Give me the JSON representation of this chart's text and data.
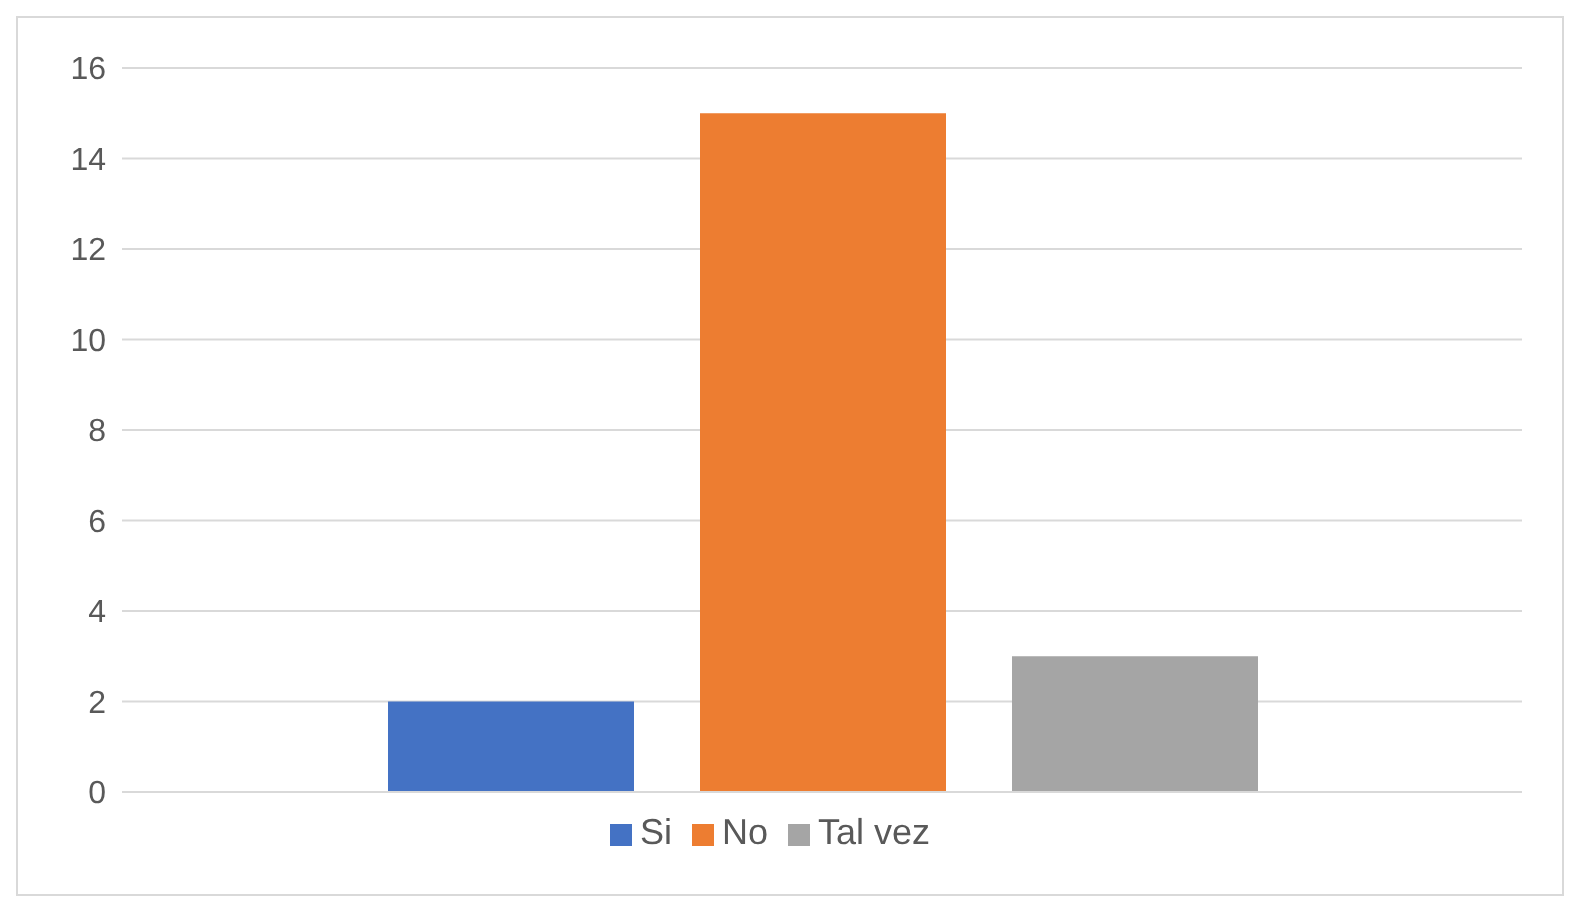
{
  "chart_data": {
    "type": "bar",
    "categories": [
      null
    ],
    "series": [
      {
        "name": "Si",
        "color": "#4472c4",
        "values": [
          2
        ]
      },
      {
        "name": "No",
        "color": "#ed7d31",
        "values": [
          15
        ]
      },
      {
        "name": "Tal vez",
        "color": "#a5a5a5",
        "values": [
          3
        ]
      }
    ],
    "ylim": [
      0,
      16
    ],
    "yticks": [
      0,
      2,
      4,
      6,
      8,
      10,
      12,
      14,
      16
    ],
    "grid": "y",
    "legend": "bottom",
    "tick_labels": "y"
  }
}
